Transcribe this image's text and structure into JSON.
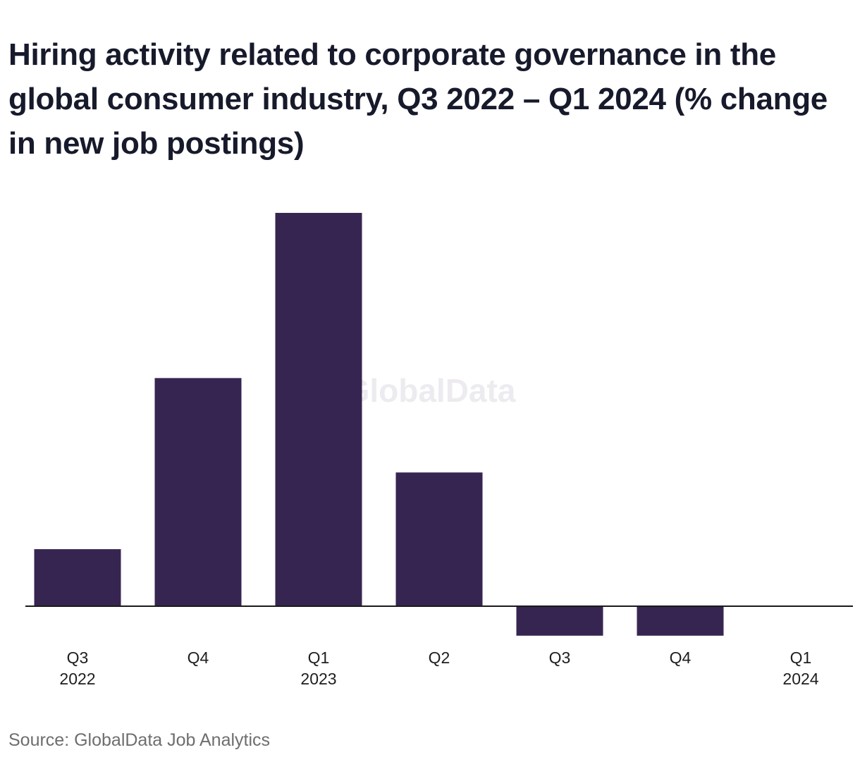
{
  "chart_data": {
    "type": "bar",
    "title": "Hiring activity related to corporate governance in the global consumer industry, Q3 2022 – Q1 2024 (% change in new job postings)",
    "categories": [
      [
        "Q3",
        "2022"
      ],
      [
        "Q4"
      ],
      [
        "Q1",
        "2023"
      ],
      [
        "Q2"
      ],
      [
        "Q3"
      ],
      [
        "Q4"
      ],
      [
        "Q1",
        "2024"
      ]
    ],
    "values": [
      14.5,
      58,
      100,
      34,
      -7.5,
      -7.5,
      0
    ],
    "ylim": [
      -10,
      100
    ],
    "grid": false,
    "bar_color": "#372551",
    "axis_color": "#1a1a1a",
    "xlabel": "",
    "ylabel": ""
  },
  "watermark": "GlobalData",
  "source": "Source: GlobalData Job Analytics"
}
